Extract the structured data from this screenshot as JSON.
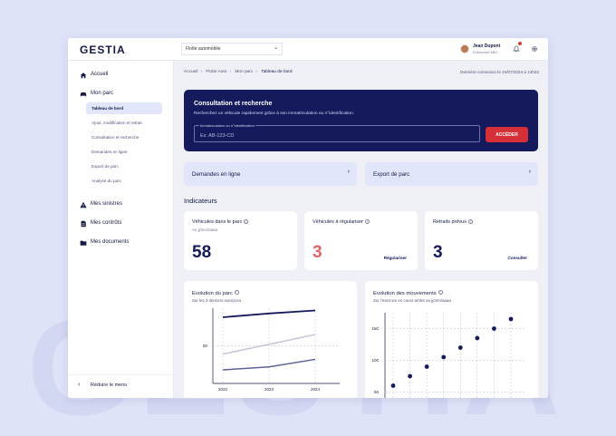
{
  "background_watermark": "GESTIA",
  "app": {
    "logo": "GESTIA",
    "fleet_select": "Flotte automobile",
    "user_name": "Jean Dupont",
    "user_company": "Entreprise ABC"
  },
  "sidebar": {
    "items": [
      {
        "label": "Accueil",
        "icon": "home-icon"
      },
      {
        "label": "Mon parc",
        "icon": "car-icon"
      },
      {
        "label": "Mes sinistres",
        "icon": "warning-icon"
      },
      {
        "label": "Mes contrôts",
        "icon": "contract-icon"
      },
      {
        "label": "Mes documents",
        "icon": "folder-icon"
      }
    ],
    "subitems": [
      {
        "label": "Tableau de bord"
      },
      {
        "label": "Ajout, modification et retrait"
      },
      {
        "label": "Consultation et recherche"
      },
      {
        "label": "Demandes en ligne"
      },
      {
        "label": "Export de parc"
      },
      {
        "label": "Analyse du parc"
      }
    ],
    "collapse_label": "Réduire le menu"
  },
  "breadcrumb": [
    "Accueil",
    "Flotte Auto",
    "Mon parc",
    "Tableau de bord"
  ],
  "last_login": "Dernière connexion le 24/07/2024 à 13h32",
  "search": {
    "title": "Consultation et recherche",
    "description": "Recherchez un véhicule rapidement grâce à son immatriculation ou n°identification.",
    "field_label": "Immatriculation ou n°identification",
    "placeholder": "Ex: AB-123-CD",
    "button": "ACCÉDER"
  },
  "quick_links": [
    {
      "label": "Demandes en ligne"
    },
    {
      "label": "Export de parc"
    }
  ],
  "indicators": {
    "title": "Indicateurs",
    "cards": [
      {
        "title": "Véhicules dans le parc",
        "subtitle": "Au jj/mm/aaaa",
        "value": "58",
        "action": ""
      },
      {
        "title": "Véhicules à régulariser",
        "subtitle": "",
        "value": "3",
        "action": "Régulariser"
      },
      {
        "title": "Retraits prévus",
        "subtitle": "",
        "value": "3",
        "action": "Consulter"
      }
    ]
  },
  "colors": {
    "navy": "#141a5c",
    "accent_red": "#d62f37",
    "alert_value": "#e0646a",
    "series_light": "#c3c6d6",
    "series_mid": "#5a6296"
  },
  "chart_data": [
    {
      "type": "line",
      "title": "Evolution du parc",
      "subtitle": "Sur les 3 derniers exercices",
      "categories": [
        "2022",
        "2023",
        "2024"
      ],
      "y_tick_labels": [
        "50"
      ],
      "ylim": [
        0,
        100
      ],
      "grid": true,
      "series": [
        {
          "values": [
            88,
            93,
            97
          ],
          "color": "#141a5c"
        },
        {
          "values": [
            39,
            52,
            65
          ],
          "color": "#c3c6d6"
        },
        {
          "values": [
            18,
            22,
            32
          ],
          "color": "#5a6296"
        }
      ]
    },
    {
      "type": "scatter",
      "title": "Evolution des mouvements",
      "subtitle": "Sur l'exercice en cours arrêté au jj/mm/aaaa",
      "y_tick_labels": [
        "150",
        "100",
        "50"
      ],
      "ylim": [
        25,
        175
      ],
      "grid": true,
      "values": [
        60,
        75,
        90,
        105,
        120,
        135,
        150,
        165
      ]
    }
  ]
}
